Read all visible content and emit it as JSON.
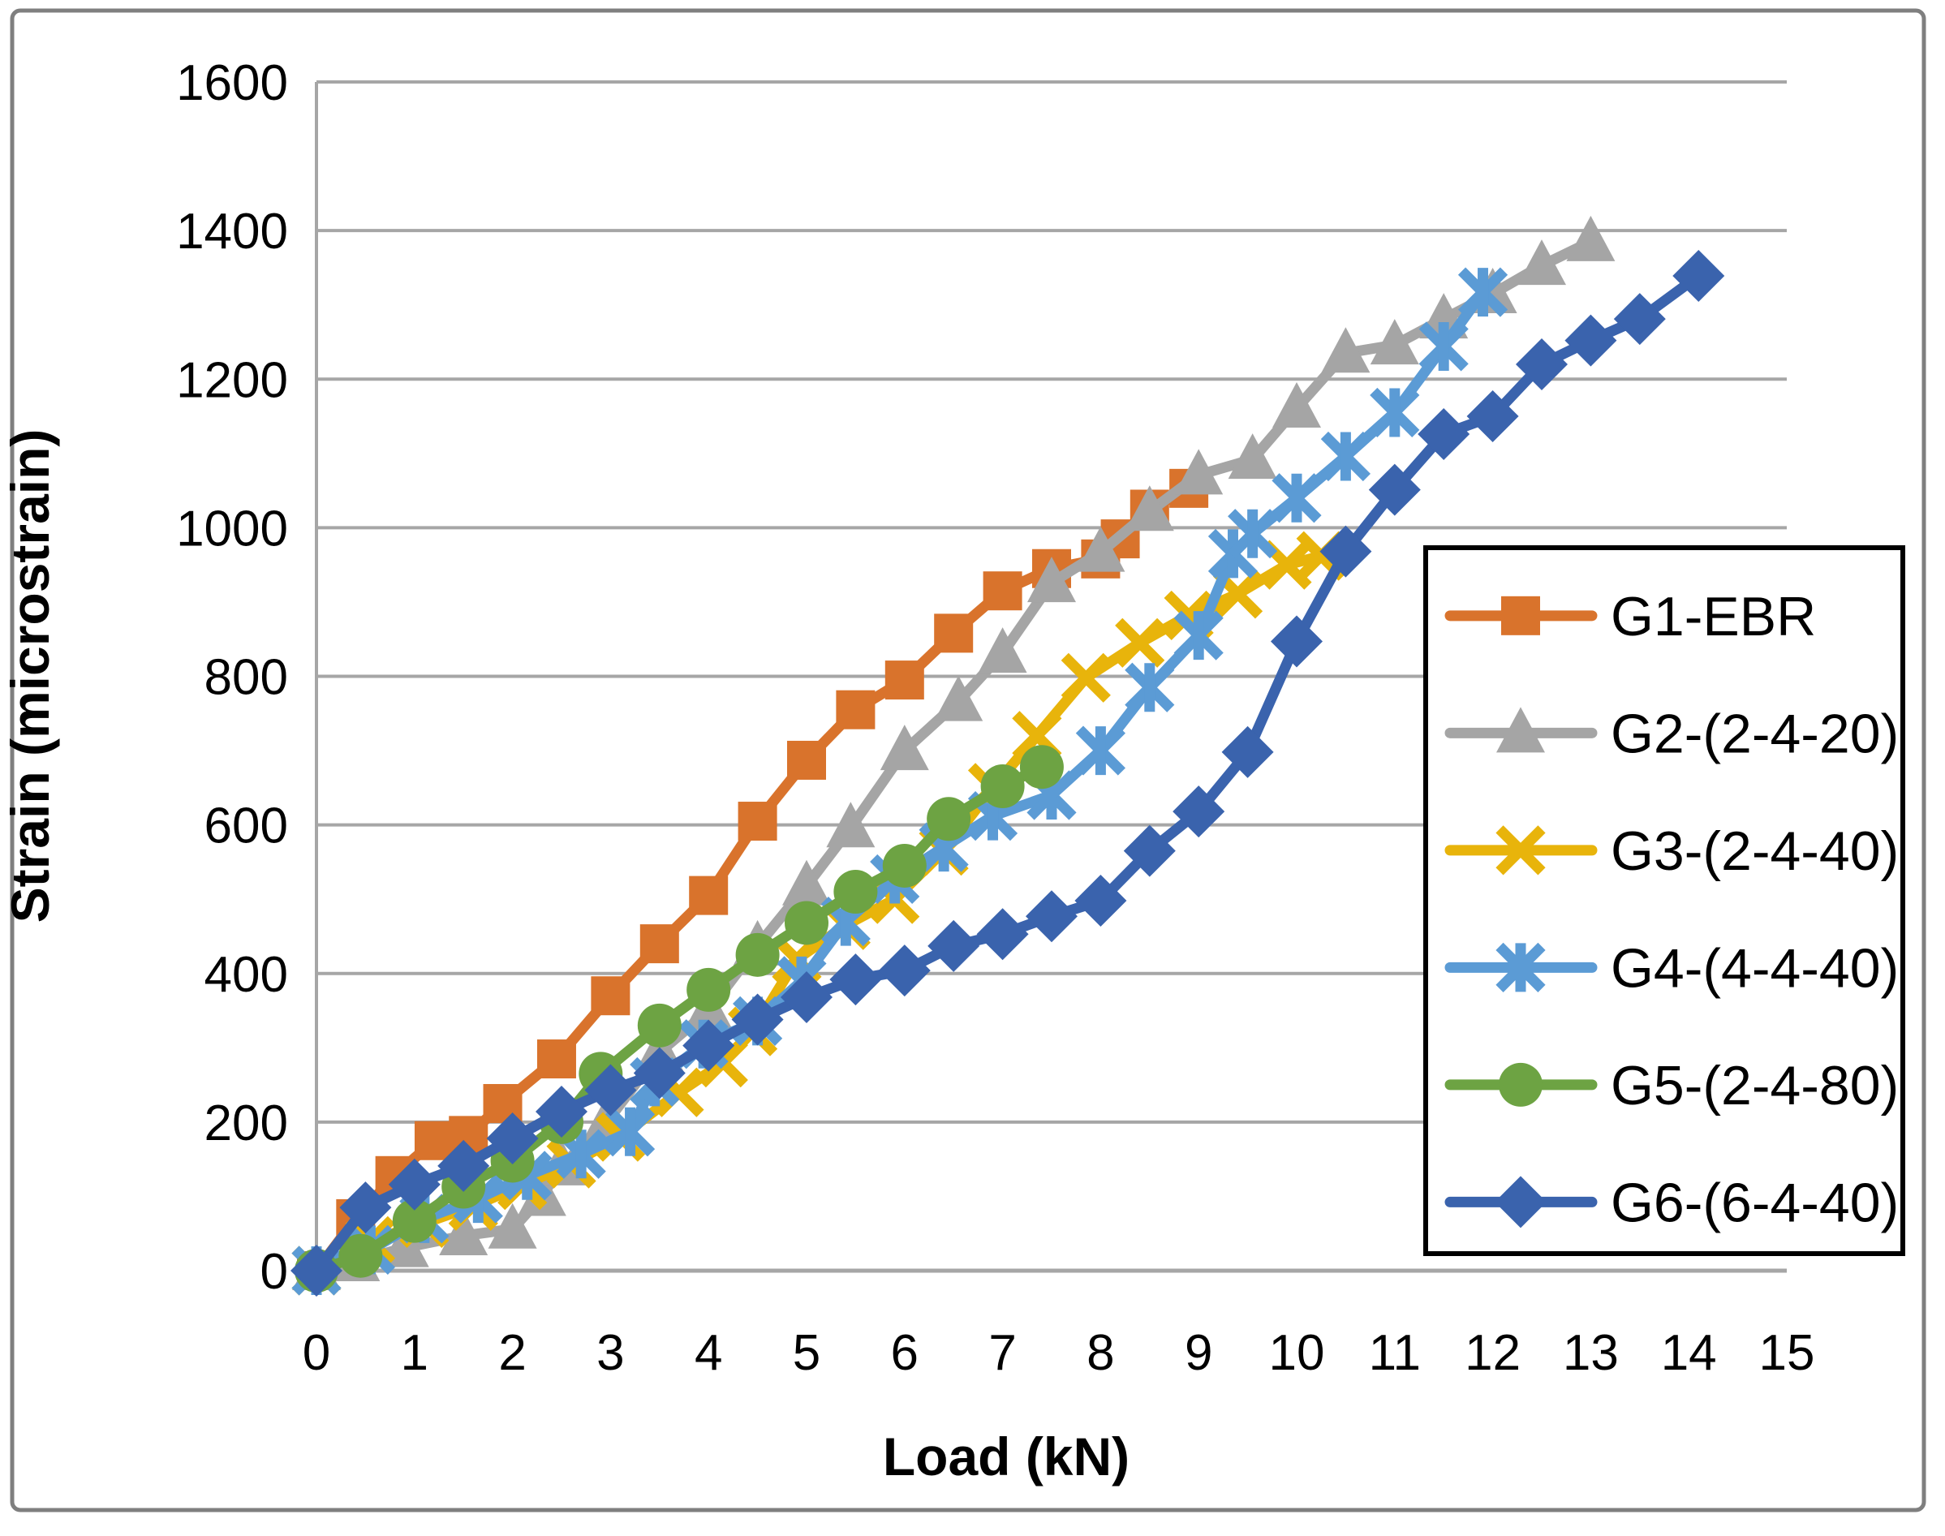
{
  "figure": {
    "border_color": "#7f7f7f",
    "background": "#ffffff",
    "gridline_color": "#a6a6a6",
    "axis_line_color": "#a6a6a6",
    "legend_border_color": "#000000"
  },
  "chart_data": {
    "type": "line",
    "title": "",
    "xlabel": "Load (kN)",
    "ylabel": "Strain (microstrain)",
    "xlim": [
      0,
      15
    ],
    "ylim": [
      0,
      1600
    ],
    "x_ticks": [
      0,
      1,
      2,
      3,
      4,
      5,
      6,
      7,
      8,
      9,
      10,
      11,
      12,
      13,
      14,
      15
    ],
    "y_ticks": [
      0,
      200,
      400,
      600,
      800,
      1000,
      1200,
      1400,
      1600
    ],
    "grid": "horizontal",
    "legend_position": "right-inside-box",
    "series": [
      {
        "name": "G1-EBR",
        "color": "#d9732c",
        "marker": "square",
        "points": [
          [
            0,
            0
          ],
          [
            0.4,
            70
          ],
          [
            0.8,
            128
          ],
          [
            1.2,
            175
          ],
          [
            1.55,
            182
          ],
          [
            1.9,
            225
          ],
          [
            2.45,
            285
          ],
          [
            3,
            370
          ],
          [
            3.5,
            440
          ],
          [
            4,
            505
          ],
          [
            4.5,
            605
          ],
          [
            5,
            687
          ],
          [
            5.5,
            755
          ],
          [
            6,
            795
          ],
          [
            6.5,
            858
          ],
          [
            7,
            915
          ],
          [
            7.5,
            945
          ],
          [
            8,
            958
          ],
          [
            8.2,
            985
          ],
          [
            8.5,
            1025
          ],
          [
            8.9,
            1053
          ]
        ]
      },
      {
        "name": "G2-(2-4-20)",
        "color": "#a5a5a5",
        "marker": "triangle",
        "points": [
          [
            0,
            0
          ],
          [
            0.4,
            12
          ],
          [
            0.9,
            31
          ],
          [
            1.5,
            47
          ],
          [
            2,
            56
          ],
          [
            2.3,
            100
          ],
          [
            2.5,
            141
          ],
          [
            2.95,
            198
          ],
          [
            3.5,
            294
          ],
          [
            4,
            350
          ],
          [
            4.5,
            437
          ],
          [
            5,
            518
          ],
          [
            5.45,
            596
          ],
          [
            6,
            700
          ],
          [
            6.55,
            766
          ],
          [
            7,
            831
          ],
          [
            7.5,
            926
          ],
          [
            8,
            967
          ],
          [
            8.5,
            1022
          ],
          [
            9,
            1071
          ],
          [
            9.55,
            1092
          ],
          [
            10,
            1161
          ],
          [
            10.5,
            1235
          ],
          [
            11,
            1246
          ],
          [
            11.5,
            1281
          ],
          [
            12,
            1315
          ],
          [
            12.5,
            1353
          ],
          [
            13,
            1385
          ]
        ]
      },
      {
        "name": "G3-(2-4-40)",
        "color": "#e8b40b",
        "marker": "x",
        "points": [
          [
            0,
            0
          ],
          [
            0.55,
            40
          ],
          [
            1.1,
            64
          ],
          [
            1.6,
            87
          ],
          [
            2.1,
            115
          ],
          [
            2.6,
            144
          ],
          [
            3.1,
            180
          ],
          [
            3.7,
            240
          ],
          [
            4.15,
            280
          ],
          [
            4.45,
            322
          ],
          [
            4.9,
            419
          ],
          [
            5.4,
            465
          ],
          [
            5.9,
            500
          ],
          [
            6.4,
            565
          ],
          [
            6.9,
            650
          ],
          [
            7.35,
            720
          ],
          [
            7.85,
            798
          ],
          [
            8.4,
            845
          ],
          [
            8.9,
            882
          ],
          [
            9.4,
            911
          ],
          [
            9.9,
            950
          ],
          [
            10.25,
            962
          ]
        ]
      },
      {
        "name": "G4-(4-4-40)",
        "color": "#5b9bd5",
        "marker": "star",
        "points": [
          [
            0,
            0
          ],
          [
            0.55,
            28
          ],
          [
            1.1,
            70
          ],
          [
            1.65,
            97
          ],
          [
            2.15,
            128
          ],
          [
            2.7,
            157
          ],
          [
            3.2,
            187
          ],
          [
            3.45,
            254
          ],
          [
            3.95,
            305
          ],
          [
            4.5,
            336
          ],
          [
            4.95,
            390
          ],
          [
            5.4,
            470
          ],
          [
            5.9,
            527
          ],
          [
            6.4,
            570
          ],
          [
            6.9,
            612
          ],
          [
            7.5,
            640
          ],
          [
            8,
            700
          ],
          [
            8.5,
            785
          ],
          [
            9,
            855
          ],
          [
            9.35,
            965
          ],
          [
            9.55,
            992
          ],
          [
            10,
            1040
          ],
          [
            10.5,
            1096
          ],
          [
            11,
            1155
          ],
          [
            11.5,
            1244
          ],
          [
            11.9,
            1317
          ]
        ]
      },
      {
        "name": "G5-(2-4-80)",
        "color": "#6da343",
        "marker": "circle",
        "points": [
          [
            0,
            0
          ],
          [
            0.45,
            20
          ],
          [
            1,
            67
          ],
          [
            1.5,
            113
          ],
          [
            2,
            148
          ],
          [
            2.5,
            200
          ],
          [
            2.9,
            265
          ],
          [
            3.5,
            330
          ],
          [
            4,
            378
          ],
          [
            4.5,
            425
          ],
          [
            5,
            468
          ],
          [
            5.5,
            510
          ],
          [
            6,
            545
          ],
          [
            6.45,
            608
          ],
          [
            7,
            652
          ],
          [
            7.4,
            678
          ]
        ]
      },
      {
        "name": "G6-(6-4-40)",
        "color": "#3a63ad",
        "marker": "diamond",
        "points": [
          [
            0,
            0
          ],
          [
            0.5,
            85
          ],
          [
            1,
            116
          ],
          [
            1.5,
            141
          ],
          [
            2,
            178
          ],
          [
            2.5,
            214
          ],
          [
            3,
            243
          ],
          [
            3.5,
            266
          ],
          [
            4,
            303
          ],
          [
            4.5,
            338
          ],
          [
            5,
            368
          ],
          [
            5.5,
            392
          ],
          [
            6,
            404
          ],
          [
            6.5,
            437
          ],
          [
            7,
            453
          ],
          [
            7.5,
            477
          ],
          [
            8,
            498
          ],
          [
            8.5,
            565
          ],
          [
            9,
            618
          ],
          [
            9.5,
            698
          ],
          [
            10,
            847
          ],
          [
            10.5,
            968
          ],
          [
            11,
            1051
          ],
          [
            11.5,
            1126
          ],
          [
            12,
            1150
          ],
          [
            12.5,
            1220
          ],
          [
            13,
            1252
          ],
          [
            13.5,
            1281
          ],
          [
            14.1,
            1339
          ]
        ]
      }
    ]
  }
}
